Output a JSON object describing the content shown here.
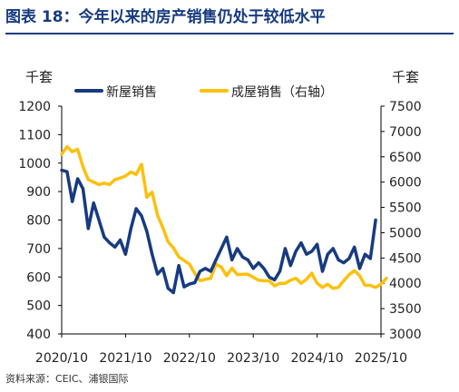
{
  "title": "图表 18：今年以来的房产销售仍处于较低水平",
  "source": "资料来源：CEIC、浦银国际",
  "colors": {
    "title": "#173b80",
    "new_homes": "#173b80",
    "existing_homes": "#fcc00e"
  },
  "chart_data": {
    "type": "line",
    "left_unit": "千套",
    "right_unit": "千套",
    "ylim_left": [
      400,
      1200
    ],
    "ylim_right": [
      3000,
      7500
    ],
    "left_ticks": [
      "400",
      "500",
      "600",
      "700",
      "800",
      "900",
      "1000",
      "1100",
      "1200"
    ],
    "right_ticks": [
      "3000",
      "3500",
      "4000",
      "4500",
      "5000",
      "5500",
      "6000",
      "6500",
      "7000",
      "7500"
    ],
    "x_ticks": [
      "2020/10",
      "2021/10",
      "2022/10",
      "2023/10",
      "2024/10",
      "2025/10"
    ],
    "x_tick_positions": [
      0,
      12,
      24,
      36,
      48,
      60
    ],
    "grid": false,
    "legend_position": "top",
    "series": [
      {
        "name": "新屋销售",
        "axis": "left",
        "color": "#173b80",
        "x": [
          0,
          1,
          2,
          3,
          4,
          5,
          6,
          7,
          8,
          9,
          10,
          11,
          12,
          13,
          14,
          15,
          16,
          17,
          18,
          19,
          20,
          21,
          22,
          23,
          24,
          25,
          26,
          27,
          28,
          29,
          30,
          31,
          32,
          33,
          34,
          35,
          36,
          37,
          38,
          39,
          40,
          41,
          42,
          43,
          44,
          45,
          46,
          47,
          48,
          49,
          50,
          51,
          52,
          53,
          54,
          55,
          56,
          57,
          58,
          59
        ],
        "values": [
          975,
          970,
          865,
          945,
          910,
          770,
          860,
          800,
          740,
          720,
          705,
          730,
          680,
          770,
          840,
          815,
          760,
          680,
          610,
          630,
          560,
          545,
          640,
          565,
          575,
          580,
          620,
          630,
          620,
          660,
          700,
          740,
          660,
          700,
          670,
          660,
          630,
          650,
          630,
          600,
          590,
          620,
          700,
          640,
          690,
          720,
          680,
          690,
          715,
          620,
          680,
          700,
          660,
          650,
          665,
          705,
          630,
          680,
          665,
          800
        ]
      },
      {
        "name": "成屋销售（右轴）",
        "axis": "right",
        "color": "#fcc00e",
        "x": [
          0,
          1,
          2,
          3,
          4,
          5,
          6,
          7,
          8,
          9,
          10,
          11,
          12,
          13,
          14,
          15,
          16,
          17,
          18,
          19,
          20,
          21,
          22,
          23,
          24,
          25,
          26,
          27,
          28,
          29,
          30,
          31,
          32,
          33,
          34,
          35,
          36,
          37,
          38,
          39,
          40,
          41,
          42,
          43,
          44,
          45,
          46,
          47,
          48,
          49,
          50,
          51,
          52,
          53,
          54,
          55,
          56,
          57,
          58,
          59,
          60,
          61
        ],
        "values": [
          6550,
          6700,
          6600,
          6650,
          6300,
          6050,
          6000,
          5950,
          5980,
          5950,
          6050,
          6080,
          6120,
          6200,
          6150,
          6350,
          5700,
          5800,
          5350,
          5100,
          4820,
          4700,
          4520,
          4450,
          4380,
          4200,
          4050,
          4080,
          4100,
          4380,
          4320,
          4150,
          4300,
          4170,
          4180,
          4180,
          4120,
          4060,
          4050,
          4050,
          3950,
          4000,
          4000,
          4060,
          4100,
          4000,
          4080,
          4200,
          4000,
          3920,
          3980,
          3900,
          3920,
          4050,
          4170,
          4250,
          4150,
          3960,
          3960,
          3920,
          3980,
          4100
        ]
      }
    ]
  }
}
